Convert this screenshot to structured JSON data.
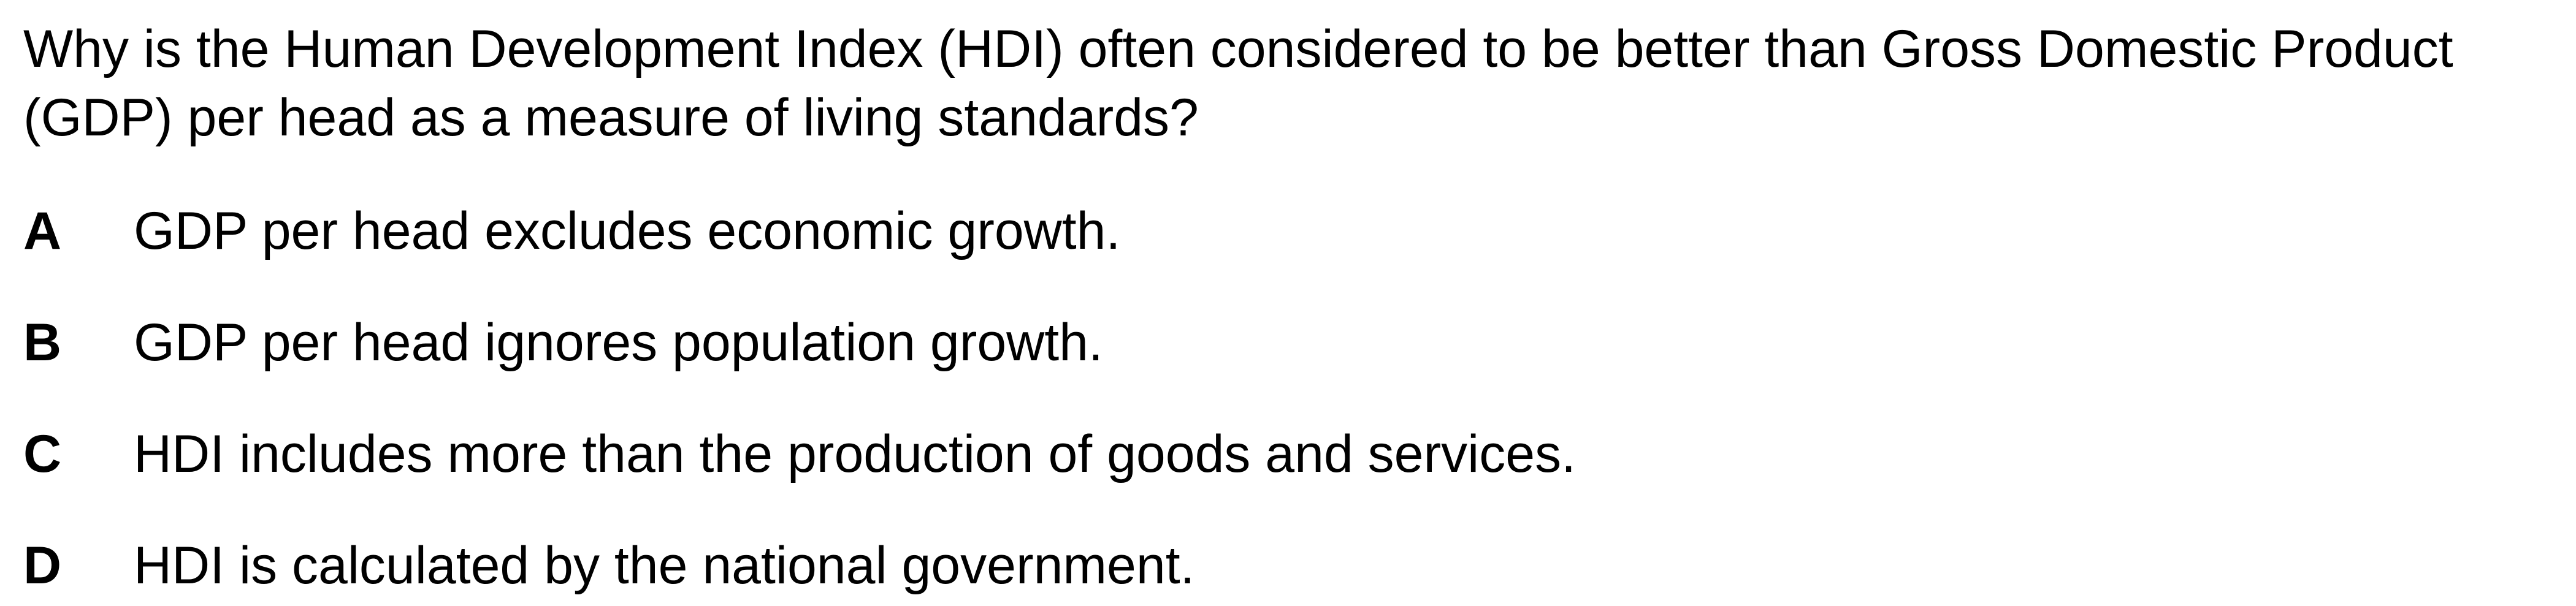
{
  "question": {
    "text": "Why is the Human Development Index (HDI) often considered to be better than Gross Domestic Product (GDP) per head as a measure of living standards?"
  },
  "options": [
    {
      "letter": "A",
      "text": "GDP per head excludes economic growth."
    },
    {
      "letter": "B",
      "text": "GDP per head ignores population growth."
    },
    {
      "letter": "C",
      "text": "HDI includes more than the production of goods and services."
    },
    {
      "letter": "D",
      "text": "HDI is calculated by the national government."
    }
  ]
}
